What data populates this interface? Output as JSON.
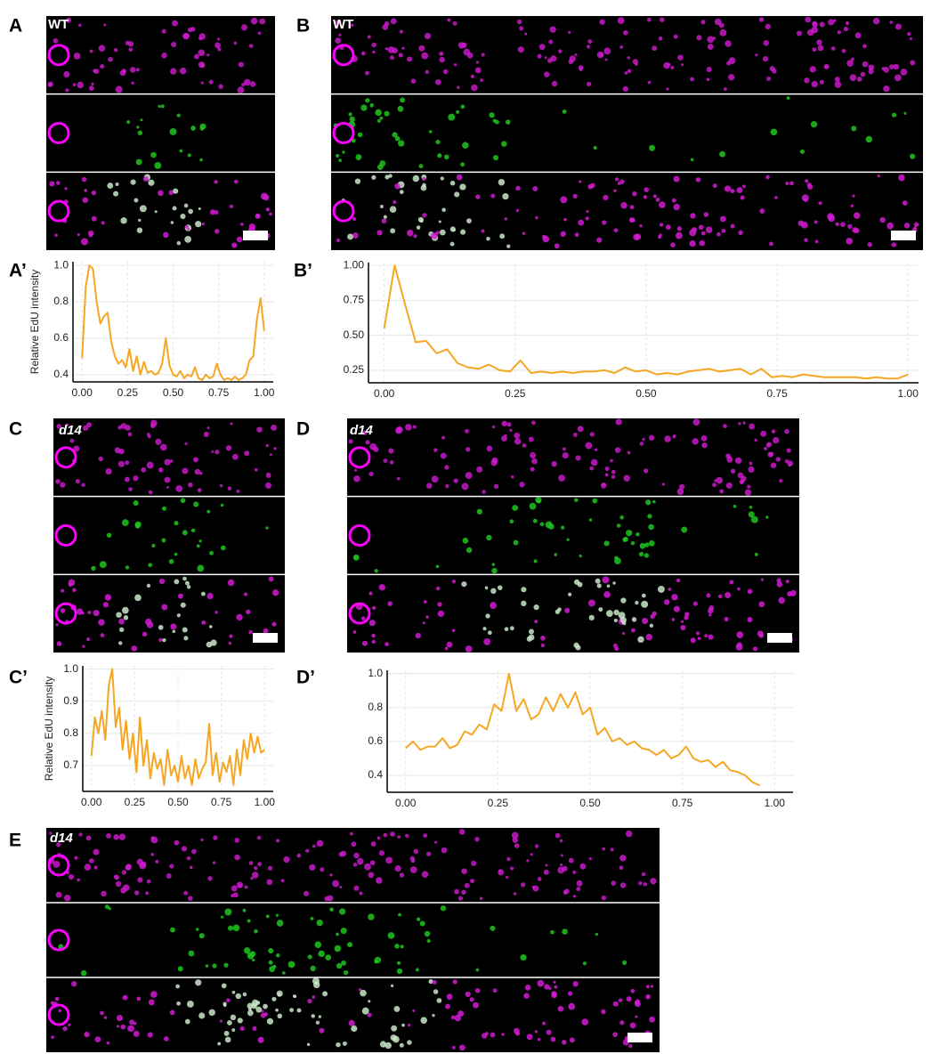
{
  "figure": {
    "panel_labels": [
      "A",
      "B",
      "A’",
      "B’",
      "C",
      "D",
      "C’",
      "D’",
      "E"
    ],
    "image_labels": [
      "WT",
      "WT",
      "d14",
      "d14",
      "d14"
    ]
  },
  "chart_data": [
    {
      "type": "line",
      "y_label": "Relative EdU intensity",
      "color": "#f5a623",
      "grid": true,
      "x": [
        0,
        0.02,
        0.04,
        0.06,
        0.08,
        0.1,
        0.12,
        0.14,
        0.16,
        0.18,
        0.2,
        0.22,
        0.24,
        0.26,
        0.28,
        0.3,
        0.32,
        0.34,
        0.36,
        0.38,
        0.4,
        0.42,
        0.44,
        0.46,
        0.48,
        0.5,
        0.52,
        0.54,
        0.56,
        0.58,
        0.6,
        0.62,
        0.64,
        0.66,
        0.68,
        0.7,
        0.72,
        0.74,
        0.76,
        0.78,
        0.8,
        0.82,
        0.84,
        0.86,
        0.88,
        0.9,
        0.92,
        0.94,
        0.96,
        0.98,
        1.0
      ],
      "values": [
        0.49,
        0.88,
        1.0,
        0.98,
        0.8,
        0.68,
        0.72,
        0.74,
        0.58,
        0.5,
        0.46,
        0.48,
        0.44,
        0.54,
        0.42,
        0.5,
        0.4,
        0.47,
        0.41,
        0.42,
        0.4,
        0.41,
        0.46,
        0.6,
        0.45,
        0.4,
        0.39,
        0.42,
        0.38,
        0.4,
        0.39,
        0.44,
        0.38,
        0.37,
        0.4,
        0.38,
        0.39,
        0.46,
        0.4,
        0.37,
        0.38,
        0.37,
        0.39,
        0.37,
        0.38,
        0.4,
        0.48,
        0.5,
        0.7,
        0.82,
        0.64
      ],
      "xlim": [
        -0.05,
        1.05
      ],
      "ylim": [
        0.36,
        1.02
      ],
      "xticks": [
        {
          "value": 0,
          "label": "0.00"
        },
        0.25,
        {
          "value": 0.5,
          "label": "0.50"
        },
        0.75,
        {
          "value": 1,
          "label": "1.00"
        }
      ],
      "yticks": [
        0.4,
        0.6,
        0.8,
        {
          "value": 1,
          "label": "1.0"
        }
      ]
    },
    {
      "type": "line",
      "color": "#f5a623",
      "grid": true,
      "x": [
        0,
        0.02,
        0.04,
        0.06,
        0.08,
        0.1,
        0.12,
        0.14,
        0.16,
        0.18,
        0.2,
        0.22,
        0.24,
        0.26,
        0.28,
        0.3,
        0.32,
        0.34,
        0.36,
        0.38,
        0.4,
        0.42,
        0.44,
        0.46,
        0.48,
        0.5,
        0.52,
        0.54,
        0.56,
        0.58,
        0.6,
        0.62,
        0.64,
        0.66,
        0.68,
        0.7,
        0.72,
        0.74,
        0.76,
        0.78,
        0.8,
        0.82,
        0.84,
        0.86,
        0.88,
        0.9,
        0.92,
        0.94,
        0.96,
        0.98,
        1.0
      ],
      "values": [
        0.55,
        1.0,
        0.72,
        0.45,
        0.46,
        0.37,
        0.4,
        0.3,
        0.27,
        0.26,
        0.29,
        0.25,
        0.24,
        0.32,
        0.23,
        0.24,
        0.23,
        0.24,
        0.23,
        0.24,
        0.24,
        0.25,
        0.23,
        0.27,
        0.24,
        0.25,
        0.22,
        0.23,
        0.22,
        0.24,
        0.25,
        0.26,
        0.24,
        0.25,
        0.26,
        0.22,
        0.26,
        0.2,
        0.21,
        0.2,
        0.22,
        0.21,
        0.2,
        0.2,
        0.2,
        0.2,
        0.19,
        0.2,
        0.19,
        0.19,
        0.22
      ],
      "xlim": [
        -0.03,
        1.02
      ],
      "ylim": [
        0.16,
        1.02
      ],
      "xticks": [
        {
          "value": 0,
          "label": "0.00"
        },
        0.25,
        {
          "value": 0.5,
          "label": "0.50"
        },
        0.75,
        {
          "value": 1,
          "label": "1.00"
        }
      ],
      "yticks": [
        0.25,
        {
          "value": 0.5,
          "label": "0.50"
        },
        0.75,
        {
          "value": 1,
          "label": "1.00"
        }
      ]
    },
    {
      "type": "line",
      "y_label": "Relative EdU intensity",
      "color": "#f5a623",
      "grid": true,
      "x": [
        0,
        0.02,
        0.04,
        0.06,
        0.08,
        0.1,
        0.12,
        0.14,
        0.16,
        0.18,
        0.2,
        0.22,
        0.24,
        0.26,
        0.28,
        0.3,
        0.32,
        0.34,
        0.36,
        0.38,
        0.4,
        0.42,
        0.44,
        0.46,
        0.48,
        0.5,
        0.52,
        0.54,
        0.56,
        0.58,
        0.6,
        0.62,
        0.64,
        0.66,
        0.68,
        0.7,
        0.72,
        0.74,
        0.76,
        0.78,
        0.8,
        0.82,
        0.84,
        0.86,
        0.88,
        0.9,
        0.92,
        0.94,
        0.96,
        0.98,
        1.0
      ],
      "values": [
        0.73,
        0.85,
        0.8,
        0.87,
        0.78,
        0.95,
        1.0,
        0.82,
        0.88,
        0.75,
        0.84,
        0.72,
        0.8,
        0.68,
        0.85,
        0.7,
        0.78,
        0.66,
        0.74,
        0.69,
        0.72,
        0.64,
        0.75,
        0.67,
        0.7,
        0.65,
        0.73,
        0.66,
        0.7,
        0.64,
        0.72,
        0.66,
        0.69,
        0.71,
        0.83,
        0.67,
        0.74,
        0.65,
        0.71,
        0.68,
        0.73,
        0.64,
        0.75,
        0.67,
        0.78,
        0.72,
        0.8,
        0.74,
        0.79,
        0.74,
        0.75
      ],
      "xlim": [
        -0.05,
        1.05
      ],
      "ylim": [
        0.62,
        1.01
      ],
      "xticks": [
        {
          "value": 0,
          "label": "0.00"
        },
        0.25,
        {
          "value": 0.5,
          "label": "0.50"
        },
        0.75,
        {
          "value": 1,
          "label": "1.00"
        }
      ],
      "yticks": [
        0.7,
        0.8,
        0.9,
        {
          "value": 1,
          "label": "1.0"
        }
      ]
    },
    {
      "type": "line",
      "color": "#f5a623",
      "grid": true,
      "x": [
        0,
        0.02,
        0.04,
        0.06,
        0.08,
        0.1,
        0.12,
        0.14,
        0.16,
        0.18,
        0.2,
        0.22,
        0.24,
        0.26,
        0.28,
        0.3,
        0.32,
        0.34,
        0.36,
        0.38,
        0.4,
        0.42,
        0.44,
        0.46,
        0.48,
        0.5,
        0.52,
        0.54,
        0.56,
        0.58,
        0.6,
        0.62,
        0.64,
        0.66,
        0.68,
        0.7,
        0.72,
        0.74,
        0.76,
        0.78,
        0.8,
        0.82,
        0.84,
        0.86,
        0.88,
        0.9,
        0.92,
        0.94,
        0.96
      ],
      "values": [
        0.56,
        0.6,
        0.55,
        0.57,
        0.57,
        0.62,
        0.56,
        0.58,
        0.66,
        0.64,
        0.7,
        0.67,
        0.82,
        0.78,
        1.0,
        0.78,
        0.85,
        0.73,
        0.76,
        0.86,
        0.78,
        0.88,
        0.8,
        0.89,
        0.76,
        0.8,
        0.64,
        0.68,
        0.6,
        0.62,
        0.58,
        0.6,
        0.56,
        0.55,
        0.52,
        0.55,
        0.5,
        0.52,
        0.57,
        0.5,
        0.48,
        0.49,
        0.45,
        0.48,
        0.43,
        0.42,
        0.4,
        0.36,
        0.34
      ],
      "xlim": [
        -0.05,
        1.05
      ],
      "ylim": [
        0.3,
        1.02
      ],
      "xticks": [
        {
          "value": 0,
          "label": "0.00"
        },
        0.25,
        {
          "value": 0.5,
          "label": "0.50"
        },
        0.75,
        {
          "value": 1,
          "label": "1.00"
        }
      ],
      "yticks": [
        0.4,
        0.6,
        0.8,
        {
          "value": 1,
          "label": "1.0"
        }
      ]
    }
  ]
}
